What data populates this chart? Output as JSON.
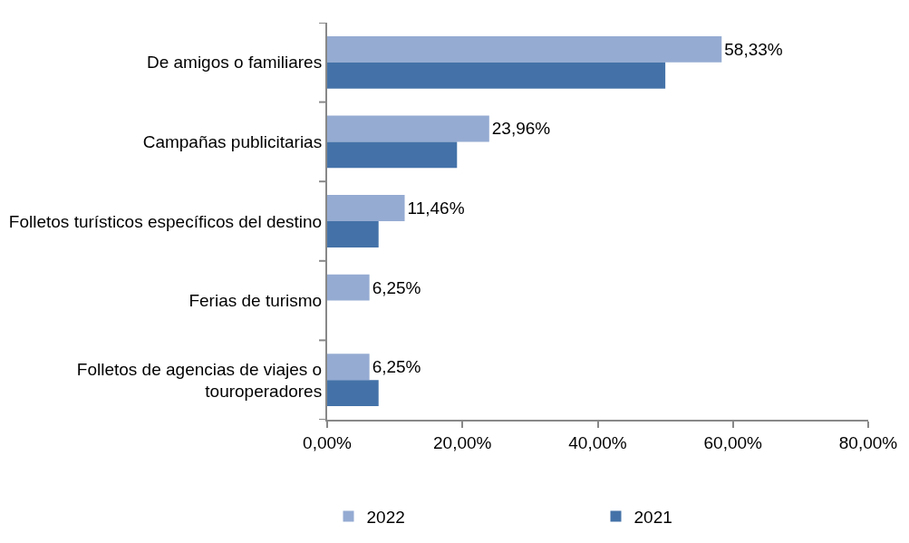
{
  "chart_data": {
    "type": "bar",
    "orientation": "horizontal",
    "categories": [
      "De amigos o familiares",
      "Campañas publicitarias",
      "Folletos turísticos específicos del destino",
      "Ferias de turismo",
      "Folletos de agencias de viajes o touroperadores"
    ],
    "series": [
      {
        "name": "2022",
        "color": "#95abd2",
        "values": [
          58.33,
          23.96,
          11.46,
          6.25,
          6.25
        ],
        "value_labels": [
          "58,33%",
          "23,96%",
          "11,46%",
          "6,25%",
          "6,25%"
        ]
      },
      {
        "name": "2021",
        "color": "#4472a8",
        "values": [
          50,
          19.2,
          7.6,
          0,
          7.6
        ]
      }
    ],
    "xlim": [
      0,
      80
    ],
    "xticks": [
      {
        "value": 0,
        "label": "0,00%"
      },
      {
        "value": 20,
        "label": "20,00%"
      },
      {
        "value": 40,
        "label": "40,00%"
      },
      {
        "value": 60,
        "label": "60,00%"
      },
      {
        "value": 80,
        "label": "80,00%"
      }
    ],
    "legend": "bottom"
  }
}
